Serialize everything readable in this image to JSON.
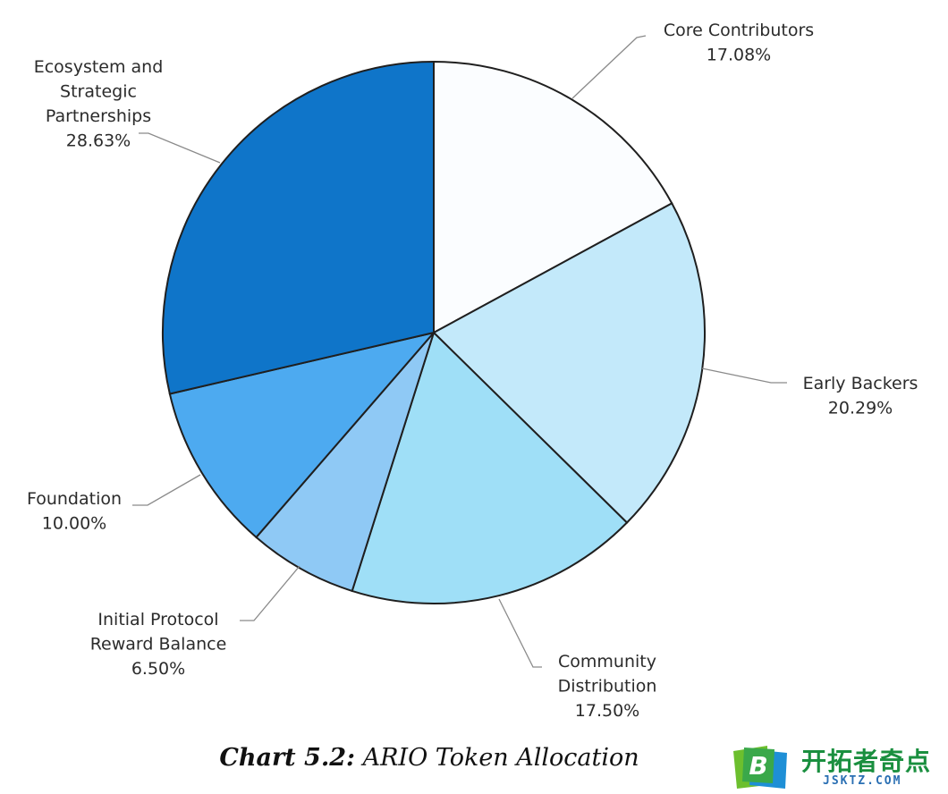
{
  "chart_data": {
    "type": "pie",
    "title": "ARIO Token Allocation",
    "caption_prefix": "Chart 5.2:",
    "start_angle_deg": 0,
    "direction": "clockwise",
    "slices": [
      {
        "label_lines": [
          "Core Contributors"
        ],
        "value": 17.08,
        "value_text": "17.08%",
        "color": "#fbfdff"
      },
      {
        "label_lines": [
          "Early Backers"
        ],
        "value": 20.29,
        "value_text": "20.29%",
        "color": "#c3e9fa"
      },
      {
        "label_lines": [
          "Community",
          "Distribution"
        ],
        "value": 17.5,
        "value_text": "17.50%",
        "color": "#9fdff7"
      },
      {
        "label_lines": [
          "Initial Protocol",
          "Reward Balance"
        ],
        "value": 6.5,
        "value_text": "6.50%",
        "color": "#8fc9f5"
      },
      {
        "label_lines": [
          "Foundation"
        ],
        "value": 10.0,
        "value_text": "10.00%",
        "color": "#4daaf0"
      },
      {
        "label_lines": [
          "Ecosystem and",
          "Strategic",
          "Partnerships"
        ],
        "value": 28.63,
        "value_text": "28.63%",
        "color": "#0f75c9"
      }
    ]
  },
  "watermark": {
    "logo_letter": "B",
    "site_name": "开拓者奇点",
    "site_domain": "JSKTZ.COM"
  }
}
